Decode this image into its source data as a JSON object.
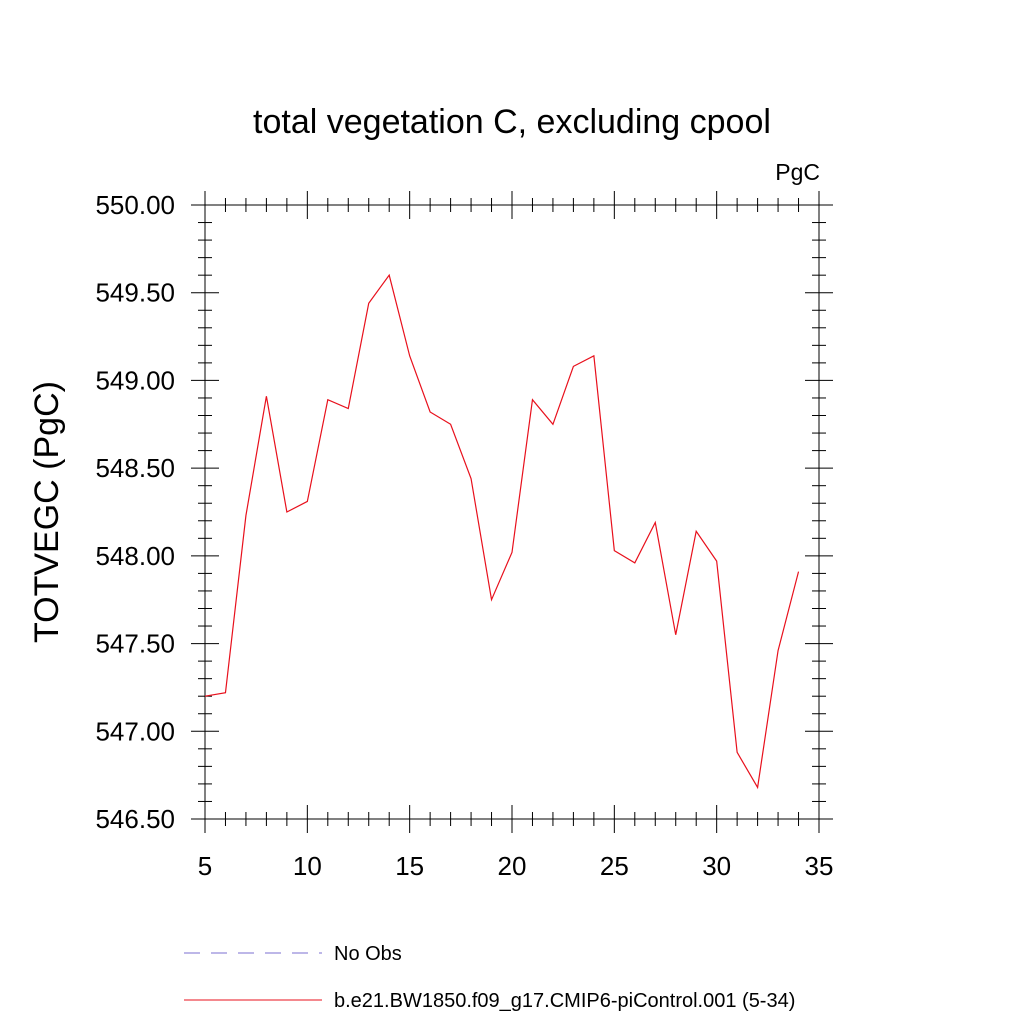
{
  "chart_data": {
    "type": "line",
    "title": "total vegetation C, excluding cpool",
    "units": "PgC",
    "ylabel": "TOTVEGC  (PgC)",
    "xlabel": "",
    "xlim": [
      5,
      35
    ],
    "ylim": [
      546.5,
      550.0
    ],
    "x_major_ticks": [
      5,
      10,
      15,
      20,
      25,
      30,
      35
    ],
    "x_tick_labels": [
      "5",
      "10",
      "15",
      "20",
      "25",
      "30",
      "35"
    ],
    "x_minor_step": 1,
    "y_major_ticks": [
      546.5,
      547.0,
      547.5,
      548.0,
      548.5,
      549.0,
      549.5,
      550.0
    ],
    "y_tick_labels": [
      "546.50",
      "547.00",
      "547.50",
      "548.00",
      "548.50",
      "549.00",
      "549.50",
      "550.00"
    ],
    "y_minor_step": 0.1,
    "grid": false,
    "legend_position": "bottom",
    "legend": [
      {
        "label": "No Obs",
        "color": "#7b6fd0",
        "style": "dashed"
      },
      {
        "label": "b.e21.BW1850.f09_g17.CMIP6-piControl.001 (5-34)",
        "color": "#e8101c",
        "style": "solid"
      }
    ],
    "series": [
      {
        "name": "b.e21.BW1850.f09_g17.CMIP6-piControl.001 (5-34)",
        "color": "#e8101c",
        "x": [
          5,
          6,
          7,
          8,
          9,
          10,
          11,
          12,
          13,
          14,
          15,
          16,
          17,
          18,
          19,
          20,
          21,
          22,
          23,
          24,
          25,
          26,
          27,
          28,
          29,
          30,
          31,
          32,
          33,
          34
        ],
        "y": [
          547.2,
          547.22,
          548.23,
          548.91,
          548.25,
          548.31,
          548.89,
          548.84,
          549.44,
          549.6,
          549.14,
          548.82,
          548.75,
          548.44,
          547.75,
          548.02,
          548.89,
          548.75,
          549.08,
          549.14,
          548.03,
          547.96,
          548.19,
          547.55,
          548.14,
          547.97,
          546.88,
          546.68,
          547.46,
          547.91
        ]
      }
    ]
  }
}
